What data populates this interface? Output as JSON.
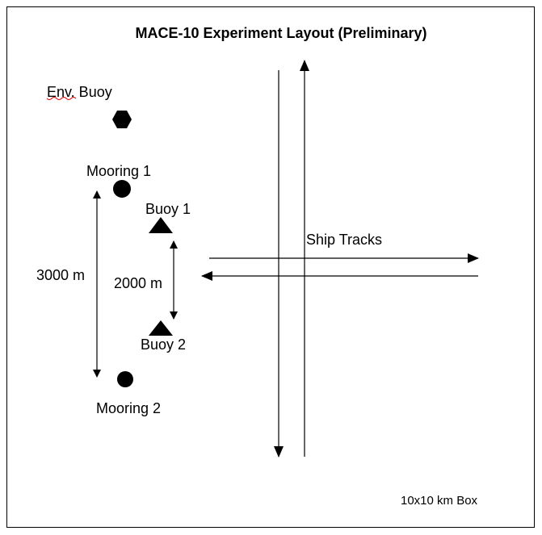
{
  "diagram": {
    "title": "MACE-10 Experiment Layout (Preliminary)",
    "labels": {
      "env_buoy": "Env. Buoy",
      "mooring_1": "Mooring 1",
      "mooring_2": "Mooring 2",
      "buoy_1": "Buoy 1",
      "buoy_2": "Buoy 2",
      "distance_moorings": "3000 m",
      "distance_buoys": "2000 m",
      "ship_tracks": "Ship Tracks",
      "box_note": "10x10 km Box"
    }
  }
}
